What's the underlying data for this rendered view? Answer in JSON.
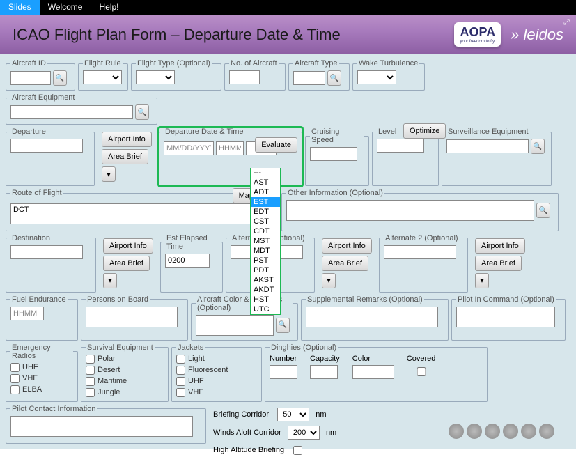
{
  "topbar": {
    "tabs": [
      "Slides",
      "Welcome",
      "Help!"
    ],
    "active": 0
  },
  "header": {
    "title": "ICAO Flight Plan Form – Departure Date & Time",
    "logo1": "AOPA",
    "logo1_sub": "your freedom to fly",
    "logo2": "leidos"
  },
  "labels": {
    "aircraft_id": "Aircraft ID",
    "flight_rule": "Flight Rule",
    "flight_type": "Flight Type (Optional)",
    "no_of_aircraft": "No. of Aircraft",
    "aircraft_type": "Aircraft Type",
    "wake": "Wake Turbulence",
    "ac_equip": "Aircraft Equipment",
    "departure": "Departure",
    "airport_info": "Airport Info",
    "area_brief": "Area Brief",
    "dep_dt": "Departure Date & Time",
    "evaluate": "Evaluate",
    "cruising": "Cruising Speed",
    "level": "Level",
    "optimize": "Optimize",
    "surv_equip": "Surveillance Equipment",
    "route": "Route of Flight",
    "map": "Map",
    "other": "Other Information (Optional)",
    "destination": "Destination",
    "est": "Est Elapsed Time",
    "alt1": "Alternate 1 (Optional)",
    "alt2": "Alternate 2 (Optional)",
    "fuel": "Fuel Endurance",
    "persons": "Persons on Board",
    "ac_color": "Aircraft Color & Markings (Optional)",
    "supprem": "Supplemental Remarks (Optional)",
    "pic": "Pilot In Command (Optional)",
    "emr": "Emergency Radios",
    "surveq": "Survival Equipment",
    "jackets": "Jackets",
    "ding": "Dinghies (Optional)",
    "number": "Number",
    "capacity": "Capacity",
    "color": "Color",
    "covered": "Covered",
    "pilotcontact": "Pilot Contact Information",
    "brief_corr": "Briefing Corridor",
    "winds": "Winds Aloft Corridor",
    "high_alt": "High Altitude Briefing",
    "nm": "nm"
  },
  "placeholders": {
    "date": "MM/DD/YYYY",
    "time": "HHMM",
    "hhmm": "HHMM"
  },
  "values": {
    "route": "DCT",
    "est": "0200",
    "brief_corr": "50",
    "winds": "200"
  },
  "tz_options": [
    "---",
    "AST",
    "ADT",
    "EST",
    "EDT",
    "CST",
    "CDT",
    "MST",
    "MDT",
    "PST",
    "PDT",
    "AKST",
    "AKDT",
    "HST",
    "UTC"
  ],
  "tz_selected": "EST",
  "emr_opts": [
    "UHF",
    "VHF",
    "ELBA"
  ],
  "surveq_opts": [
    "Polar",
    "Desert",
    "Maritime",
    "Jungle"
  ],
  "jacket_opts": [
    "Light",
    "Fluorescent",
    "UHF",
    "VHF"
  ],
  "colors": {
    "page_bg": "#d7e6eb",
    "highlight": "#1db954",
    "header_grad_top": "#b98ec7",
    "header_grad_bot": "#8d5fa4",
    "active_tab": "#1a9fff"
  }
}
